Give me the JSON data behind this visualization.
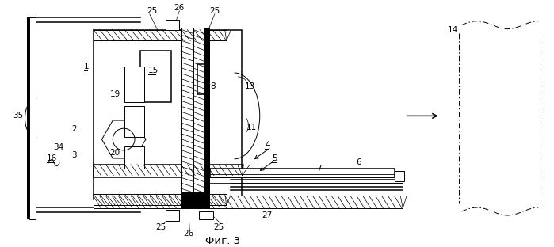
{
  "title": "Фиг. 3",
  "bg_color": "#ffffff",
  "fig_width": 6.99,
  "fig_height": 3.12,
  "dpi": 100
}
